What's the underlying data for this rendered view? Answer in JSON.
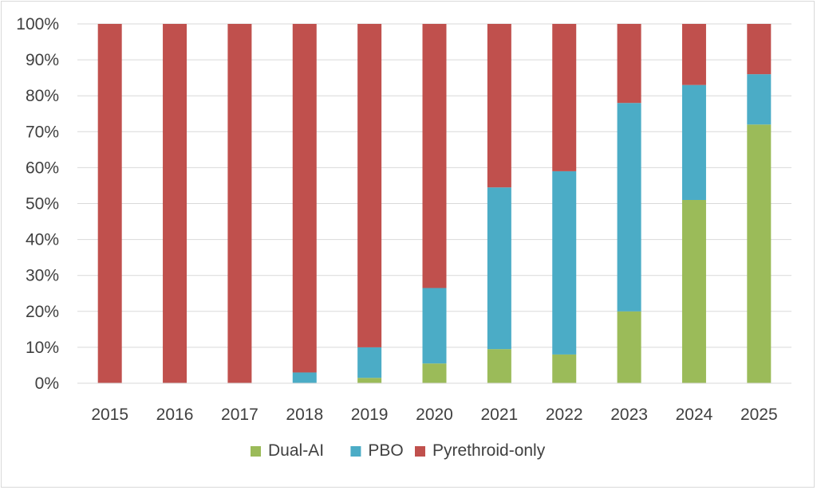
{
  "chart_data": {
    "type": "bar",
    "stacked": true,
    "normalized": true,
    "title": "",
    "xlabel": "",
    "ylabel": "",
    "ylim": [
      0,
      100
    ],
    "y_ticks": [
      "0%",
      "10%",
      "20%",
      "30%",
      "40%",
      "50%",
      "60%",
      "70%",
      "80%",
      "90%",
      "100%"
    ],
    "categories": [
      "2015",
      "2016",
      "2017",
      "2018",
      "2019",
      "2020",
      "2021",
      "2022",
      "2023",
      "2024",
      "2025"
    ],
    "series": [
      {
        "name": "Dual-AI",
        "color": "#9bbb59",
        "values": [
          0,
          0,
          0,
          0,
          1.5,
          5.5,
          9.5,
          8,
          20,
          51,
          72
        ]
      },
      {
        "name": "PBO",
        "color": "#4bacc6",
        "values": [
          0,
          0,
          0,
          3,
          8.5,
          21,
          45,
          51,
          58,
          32,
          14
        ]
      },
      {
        "name": "Pyrethroid-only",
        "color": "#c0504d",
        "values": [
          100,
          100,
          100,
          97,
          90,
          73.5,
          45.5,
          41,
          22,
          17,
          14
        ]
      }
    ],
    "grid": true,
    "legend_position": "bottom"
  }
}
